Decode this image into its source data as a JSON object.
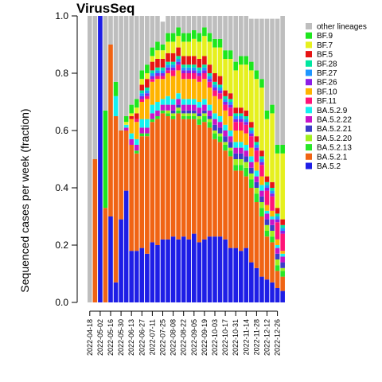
{
  "chart_data": {
    "type": "bar",
    "stacked": true,
    "title": "VirusSeq",
    "xlabel": "",
    "ylabel": "Sequenced cases per week (fraction)",
    "ylim": [
      0,
      1
    ],
    "y_ticks": [
      "0.0",
      "0.2",
      "0.4",
      "0.6",
      "0.8",
      "1.0"
    ],
    "x_ticks": [
      "2022-04-18",
      "2022-05-02",
      "2022-05-16",
      "2022-05-30",
      "2022-06-13",
      "2022-06-27",
      "2022-07-11",
      "2022-07-25",
      "2022-08-08",
      "2022-08-22",
      "2022-09-05",
      "2022-09-19",
      "2022-10-03",
      "2022-10-17",
      "2022-10-31",
      "2022-11-14",
      "2022-11-28",
      "2022-12-12",
      "2022-12-26"
    ],
    "bar_count": 38,
    "legend_position": "right",
    "legend": [
      "other lineages",
      "BF.9",
      "BF.7",
      "BF.5",
      "BF.28",
      "BF.27",
      "BF.26",
      "BF.10",
      "BF.11",
      "BA.5.2.9",
      "BA.5.2.22",
      "BA.5.2.21",
      "BA.5.2.20",
      "BA.5.2.13",
      "BA.5.2.1",
      "BA.5.2"
    ],
    "series": [
      {
        "name": "BA.5.2",
        "color": "#1e1ee6",
        "values": [
          0,
          0,
          1.0,
          0,
          0.3,
          0.07,
          0.29,
          0.39,
          0.18,
          0.18,
          0.19,
          0.17,
          0.21,
          0.2,
          0.22,
          0.22,
          0.23,
          0.22,
          0.23,
          0.22,
          0.24,
          0.21,
          0.22,
          0.23,
          0.23,
          0.23,
          0.22,
          0.19,
          0.19,
          0.18,
          0.19,
          0.14,
          0.12,
          0.09,
          0.08,
          0.07,
          0.05,
          0.04
        ]
      },
      {
        "name": "BA.5.2.1",
        "color": "#f06414",
        "values": [
          0,
          0.5,
          0,
          0.33,
          0.6,
          0.58,
          0.31,
          0.21,
          0.37,
          0.34,
          0.39,
          0.41,
          0.42,
          0.44,
          0.44,
          0.43,
          0.41,
          0.44,
          0.41,
          0.42,
          0.4,
          0.41,
          0.41,
          0.38,
          0.34,
          0.33,
          0.31,
          0.32,
          0.27,
          0.28,
          0.25,
          0.26,
          0.23,
          0.21,
          0.15,
          0.14,
          0.06,
          0.05
        ]
      },
      {
        "name": "BA.5.2.13",
        "color": "#28e628",
        "values": [
          0,
          0,
          0,
          0,
          0,
          0,
          0,
          0,
          0,
          0.01,
          0.01,
          0.01,
          0.01,
          0.01,
          0.01,
          0.01,
          0.01,
          0.01,
          0.01,
          0.01,
          0.01,
          0.02,
          0.02,
          0.02,
          0.02,
          0.02,
          0.02,
          0.02,
          0.02,
          0.02,
          0.03,
          0.03,
          0.03,
          0.03,
          0.02,
          0.02,
          0.02,
          0.02
        ]
      },
      {
        "name": "BA.5.2.20",
        "color": "#a0f01e",
        "values": [
          0,
          0,
          0,
          0,
          0,
          0,
          0,
          0,
          0,
          0,
          0,
          0,
          0,
          0,
          0,
          0.01,
          0.01,
          0.01,
          0.01,
          0.01,
          0.01,
          0.01,
          0.01,
          0.01,
          0.01,
          0.01,
          0.01,
          0.01,
          0.02,
          0.02,
          0.02,
          0.02,
          0.02,
          0.02,
          0.02,
          0.02,
          0.02,
          0.01
        ]
      },
      {
        "name": "BA.5.2.21",
        "color": "#3c3cc8",
        "values": [
          0,
          0,
          0,
          0,
          0,
          0,
          0,
          0,
          0,
          0,
          0,
          0,
          0,
          0,
          0,
          0,
          0.01,
          0.01,
          0.01,
          0.01,
          0.01,
          0.01,
          0.01,
          0.01,
          0.02,
          0.02,
          0.02,
          0.02,
          0.02,
          0.02,
          0.02,
          0.02,
          0.02,
          0.02,
          0.02,
          0.02,
          0.02,
          0.02
        ]
      },
      {
        "name": "BA.5.2.22",
        "color": "#c814c8",
        "values": [
          0,
          0,
          0,
          0,
          0,
          0,
          0,
          0.01,
          0.02,
          0.02,
          0.02,
          0.02,
          0.02,
          0.02,
          0.02,
          0.02,
          0.02,
          0.02,
          0.02,
          0.02,
          0.02,
          0.02,
          0.02,
          0.02,
          0.02,
          0.02,
          0.02,
          0.02,
          0.02,
          0.02,
          0.02,
          0.02,
          0.02,
          0.02,
          0.02,
          0.02,
          0.02,
          0.02
        ]
      },
      {
        "name": "BA.5.2.9",
        "color": "#14f0f0",
        "values": [
          0,
          0,
          0,
          0,
          0,
          0.07,
          0,
          0.01,
          0.02,
          0.02,
          0.03,
          0.03,
          0.03,
          0.03,
          0.02,
          0.03,
          0.02,
          0.02,
          0.02,
          0.02,
          0.02,
          0.02,
          0.02,
          0.02,
          0.02,
          0.02,
          0.02,
          0.02,
          0.02,
          0.02,
          0.02,
          0.02,
          0.02,
          0.02,
          0.01,
          0.01,
          0.01,
          0.01
        ]
      },
      {
        "name": "BF.10",
        "color": "#ffb400",
        "values": [
          0,
          0,
          0,
          0,
          0,
          0,
          0,
          0,
          0.05,
          0.06,
          0.06,
          0.07,
          0.08,
          0.08,
          0.07,
          0.08,
          0.08,
          0.08,
          0.07,
          0.07,
          0.07,
          0.07,
          0.07,
          0.06,
          0.06,
          0.06,
          0.05,
          0.05,
          0.04,
          0.04,
          0.04,
          0.03,
          0.03,
          0.03,
          0.02,
          0.02,
          0.02,
          0.01
        ]
      },
      {
        "name": "BF.11",
        "color": "#ff1478",
        "values": [
          0,
          0,
          0,
          0,
          0,
          0,
          0,
          0,
          0,
          0.01,
          0.01,
          0.01,
          0.01,
          0.01,
          0.01,
          0.01,
          0.02,
          0.02,
          0.02,
          0.02,
          0.02,
          0.02,
          0.02,
          0.02,
          0.02,
          0.02,
          0.02,
          0.03,
          0.03,
          0.03,
          0.03,
          0.04,
          0.04,
          0.04,
          0.05,
          0.05,
          0.06,
          0.06
        ]
      },
      {
        "name": "BF.26",
        "color": "#8c1ee6",
        "values": [
          0,
          0,
          0,
          0,
          0,
          0,
          0,
          0,
          0,
          0,
          0.01,
          0.01,
          0.01,
          0.01,
          0.01,
          0.01,
          0.01,
          0.01,
          0.01,
          0.01,
          0.01,
          0.01,
          0.01,
          0.01,
          0.01,
          0.01,
          0.01,
          0.01,
          0.01,
          0.01,
          0.01,
          0.01,
          0.01,
          0.01,
          0.01,
          0.01,
          0.01,
          0.01
        ]
      },
      {
        "name": "BF.27",
        "color": "#1e96ff",
        "values": [
          0,
          0,
          0,
          0,
          0,
          0,
          0,
          0,
          0,
          0,
          0.01,
          0.01,
          0.01,
          0.01,
          0.01,
          0.01,
          0.01,
          0.01,
          0.01,
          0.01,
          0.01,
          0.01,
          0.01,
          0.01,
          0.01,
          0.01,
          0.01,
          0.01,
          0.01,
          0.01,
          0.01,
          0.01,
          0.01,
          0.01,
          0.01,
          0.01,
          0.01,
          0.01
        ]
      },
      {
        "name": "BF.28",
        "color": "#00e6a0",
        "values": [
          0,
          0,
          0,
          0,
          0,
          0,
          0,
          0,
          0,
          0,
          0.01,
          0.01,
          0.01,
          0.01,
          0.01,
          0.01,
          0.01,
          0.01,
          0.01,
          0.01,
          0.01,
          0.01,
          0.01,
          0.01,
          0.01,
          0.01,
          0.01,
          0.01,
          0.01,
          0.01,
          0.01,
          0.01,
          0.01,
          0.01,
          0.01,
          0.01,
          0.01,
          0.01
        ]
      },
      {
        "name": "BF.5",
        "color": "#e61414",
        "values": [
          0,
          0,
          0,
          0,
          0,
          0,
          0,
          0,
          0.01,
          0.02,
          0.02,
          0.03,
          0.03,
          0.03,
          0.03,
          0.03,
          0.03,
          0.03,
          0.03,
          0.03,
          0.03,
          0.03,
          0.03,
          0.03,
          0.03,
          0.03,
          0.02,
          0.02,
          0.02,
          0.02,
          0.02,
          0.02,
          0.02,
          0.02,
          0.02,
          0.02,
          0.02,
          0.02
        ]
      },
      {
        "name": "BF.7",
        "color": "#e6f01e",
        "values": [
          0,
          0,
          0,
          0,
          0,
          0,
          0,
          0.01,
          0.01,
          0.02,
          0.02,
          0.02,
          0.02,
          0.03,
          0.03,
          0.04,
          0.04,
          0.04,
          0.05,
          0.05,
          0.06,
          0.06,
          0.07,
          0.08,
          0.09,
          0.1,
          0.11,
          0.12,
          0.13,
          0.15,
          0.16,
          0.18,
          0.2,
          0.22,
          0.2,
          0.24,
          0.19,
          0.23
        ]
      },
      {
        "name": "BF.9",
        "color": "#1ee61e",
        "values": [
          0,
          0,
          0,
          0.34,
          0,
          0.05,
          0,
          0.02,
          0.03,
          0.03,
          0.03,
          0.03,
          0.03,
          0.03,
          0.02,
          0.03,
          0.03,
          0.03,
          0.03,
          0.03,
          0.03,
          0.03,
          0.03,
          0.03,
          0.03,
          0.03,
          0.03,
          0.03,
          0.03,
          0.03,
          0.03,
          0.03,
          0.03,
          0.03,
          0.03,
          0.03,
          0.03,
          0.03
        ]
      },
      {
        "name": "other lineages",
        "color": "#bebebe",
        "values": [
          1.0,
          0.5,
          0,
          0.33,
          0.1,
          0.23,
          0.4,
          0.35,
          0.31,
          0.29,
          0.19,
          0.17,
          0.11,
          0.09,
          0.08,
          0.06,
          0.07,
          0.05,
          0.07,
          0.07,
          0.07,
          0.06,
          0.05,
          0.07,
          0.09,
          0.09,
          0.12,
          0.13,
          0.16,
          0.15,
          0.16,
          0.15,
          0.18,
          0.21,
          0.32,
          0.3,
          0.44,
          0.45
        ]
      }
    ]
  }
}
